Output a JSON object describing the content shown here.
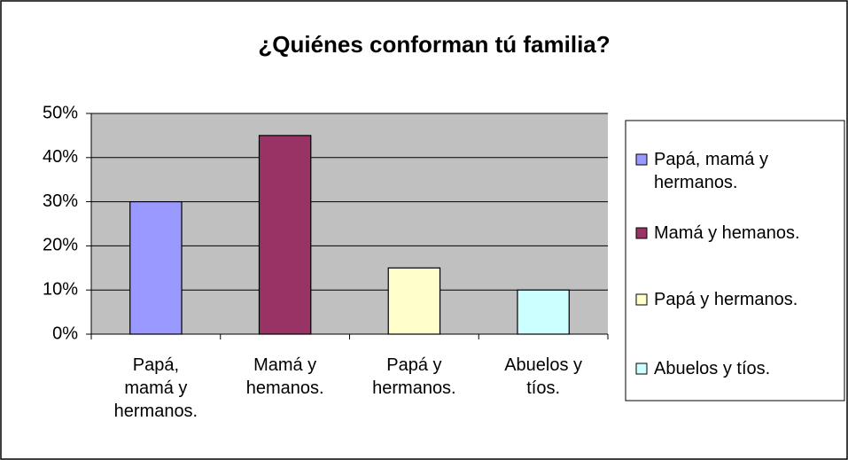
{
  "chart_data": {
    "type": "bar",
    "title": "¿Quiénes conforman tú familia?",
    "categories": [
      "Papá, mamá y hermanos.",
      "Mamá y hemanos.",
      "Papá y hermanos.",
      "Abuelos y tíos."
    ],
    "values": [
      30,
      45,
      15,
      10
    ],
    "colors": [
      "#9999ff",
      "#993366",
      "#ffffcc",
      "#ccffff"
    ],
    "ylim": [
      0,
      50
    ],
    "yticks": [
      {
        "value": 0,
        "label": "0%"
      },
      {
        "value": 10,
        "label": "10%"
      },
      {
        "value": 20,
        "label": "20%"
      },
      {
        "value": 30,
        "label": "30%"
      },
      {
        "value": 40,
        "label": "40%"
      },
      {
        "value": 50,
        "label": "50%"
      }
    ],
    "grid": true,
    "legend": "right"
  }
}
